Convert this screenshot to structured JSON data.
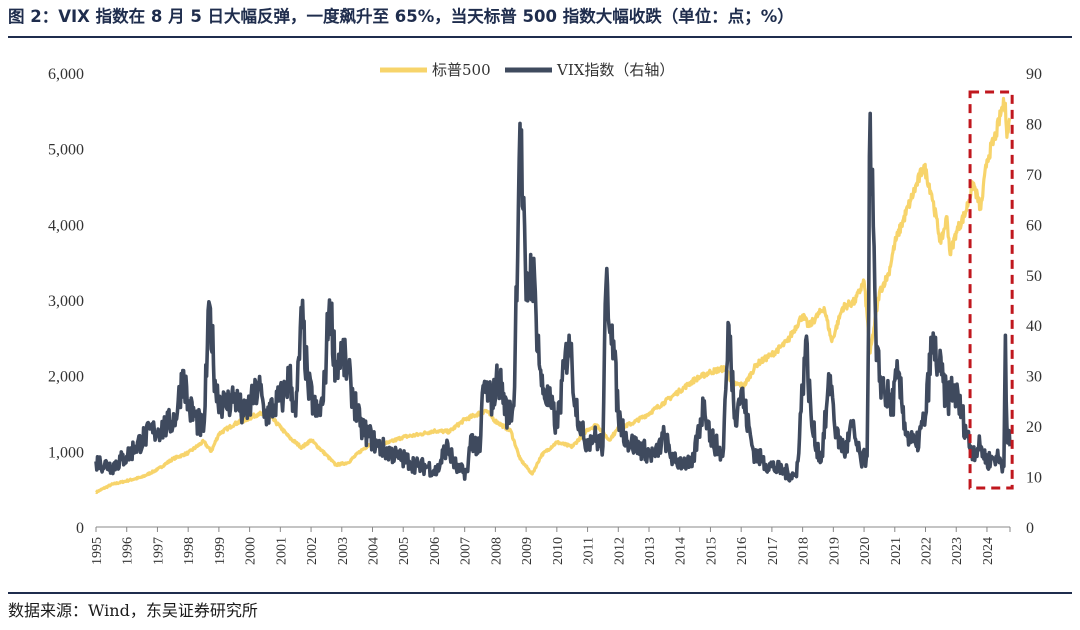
{
  "header": {
    "title": "图 2：VIX 指数在 8 月 5 日大幅反弹，一度飙升至 65%，当天标普 500 指数大幅收跌（单位：点；%）"
  },
  "footer": {
    "source": "数据来源：Wind，东吴证券研究所"
  },
  "colors": {
    "spx": "#f7d46b",
    "vix": "#3f4a5e",
    "highlight": "#c0171e",
    "axis": "#888888"
  },
  "chart_data": {
    "type": "line",
    "title": "",
    "legend_position": "top-center",
    "grid": false,
    "highlight_box": {
      "x_range": [
        "2023-05",
        "2024-08"
      ],
      "style": "dashed",
      "note": "recent period highlighted"
    },
    "y_left": {
      "min": 0,
      "max": 6000,
      "ticks": [
        0,
        1000,
        2000,
        3000,
        4000,
        5000,
        6000
      ],
      "tick_labels": [
        "0",
        "1,000",
        "2,000",
        "3,000",
        "4,000",
        "5,000",
        "6,000"
      ]
    },
    "y_right": {
      "min": 0,
      "max": 90,
      "ticks": [
        0,
        10,
        20,
        30,
        40,
        50,
        60,
        70,
        80,
        90
      ],
      "tick_labels": [
        "0",
        "10",
        "20",
        "30",
        "40",
        "50",
        "60",
        "70",
        "80",
        "90"
      ]
    },
    "x_axis": {
      "start": 1995.0,
      "end": 2024.75,
      "tick_labels": [
        "1995",
        "1996",
        "1997",
        "1998",
        "1999",
        "2000",
        "2001",
        "2002",
        "2003",
        "2004",
        "2005",
        "2006",
        "2007",
        "2008",
        "2009",
        "2010",
        "2011",
        "2012",
        "2013",
        "2014",
        "2015",
        "2016",
        "2017",
        "2018",
        "2019",
        "2020",
        "2021",
        "2022",
        "2023",
        "2024"
      ]
    },
    "series": [
      {
        "name": "标普500",
        "axis": "left",
        "points": [
          [
            1995.0,
            460
          ],
          [
            1995.5,
            560
          ],
          [
            1996.0,
            610
          ],
          [
            1996.5,
            660
          ],
          [
            1997.0,
            760
          ],
          [
            1997.5,
            900
          ],
          [
            1998.0,
            980
          ],
          [
            1998.5,
            1130
          ],
          [
            1998.75,
            1000
          ],
          [
            1999.0,
            1230
          ],
          [
            1999.5,
            1360
          ],
          [
            2000.0,
            1440
          ],
          [
            2000.3,
            1500
          ],
          [
            2000.7,
            1450
          ],
          [
            2001.0,
            1320
          ],
          [
            2001.3,
            1180
          ],
          [
            2001.7,
            1050
          ],
          [
            2002.0,
            1150
          ],
          [
            2002.5,
            950
          ],
          [
            2002.8,
            820
          ],
          [
            2003.2,
            850
          ],
          [
            2003.6,
            1000
          ],
          [
            2004.0,
            1120
          ],
          [
            2004.5,
            1110
          ],
          [
            2005.0,
            1190
          ],
          [
            2005.5,
            1220
          ],
          [
            2006.0,
            1270
          ],
          [
            2006.5,
            1260
          ],
          [
            2007.0,
            1420
          ],
          [
            2007.7,
            1540
          ],
          [
            2008.0,
            1400
          ],
          [
            2008.5,
            1270
          ],
          [
            2008.8,
            900
          ],
          [
            2009.2,
            700
          ],
          [
            2009.5,
            950
          ],
          [
            2010.0,
            1120
          ],
          [
            2010.5,
            1060
          ],
          [
            2011.0,
            1290
          ],
          [
            2011.3,
            1350
          ],
          [
            2011.7,
            1150
          ],
          [
            2012.0,
            1300
          ],
          [
            2012.5,
            1380
          ],
          [
            2013.0,
            1500
          ],
          [
            2013.5,
            1650
          ],
          [
            2014.0,
            1800
          ],
          [
            2014.5,
            1950
          ],
          [
            2015.0,
            2050
          ],
          [
            2015.5,
            2100
          ],
          [
            2015.7,
            1900
          ],
          [
            2016.1,
            1870
          ],
          [
            2016.5,
            2150
          ],
          [
            2017.0,
            2280
          ],
          [
            2017.5,
            2450
          ],
          [
            2018.0,
            2800
          ],
          [
            2018.2,
            2650
          ],
          [
            2018.7,
            2900
          ],
          [
            2018.95,
            2450
          ],
          [
            2019.3,
            2900
          ],
          [
            2019.7,
            2980
          ],
          [
            2020.0,
            3250
          ],
          [
            2020.2,
            2300
          ],
          [
            2020.5,
            3100
          ],
          [
            2020.8,
            3350
          ],
          [
            2021.0,
            3750
          ],
          [
            2021.5,
            4300
          ],
          [
            2021.95,
            4780
          ],
          [
            2022.2,
            4400
          ],
          [
            2022.5,
            3750
          ],
          [
            2022.7,
            4100
          ],
          [
            2022.8,
            3600
          ],
          [
            2023.0,
            3900
          ],
          [
            2023.3,
            4150
          ],
          [
            2023.55,
            4550
          ],
          [
            2023.8,
            4200
          ],
          [
            2024.0,
            4850
          ],
          [
            2024.3,
            5200
          ],
          [
            2024.5,
            5550
          ],
          [
            2024.6,
            5600
          ],
          [
            2024.65,
            5150
          ],
          [
            2024.75,
            5400
          ]
        ]
      },
      {
        "name": "VIX指数（右轴）",
        "axis": "right",
        "points": [
          [
            1995.0,
            13
          ],
          [
            1995.5,
            12
          ],
          [
            1996.0,
            14
          ],
          [
            1996.3,
            16
          ],
          [
            1996.6,
            18
          ],
          [
            1996.9,
            19
          ],
          [
            1997.3,
            20
          ],
          [
            1997.6,
            22
          ],
          [
            1997.85,
            31
          ],
          [
            1998.0,
            24
          ],
          [
            1998.5,
            19
          ],
          [
            1998.7,
            44
          ],
          [
            1998.9,
            27
          ],
          [
            1999.2,
            24
          ],
          [
            1999.5,
            26
          ],
          [
            1999.8,
            22
          ],
          [
            2000.1,
            25
          ],
          [
            2000.3,
            28
          ],
          [
            2000.5,
            22
          ],
          [
            2000.8,
            24
          ],
          [
            2001.1,
            26
          ],
          [
            2001.3,
            30
          ],
          [
            2001.5,
            22
          ],
          [
            2001.7,
            42
          ],
          [
            2001.9,
            28
          ],
          [
            2002.2,
            22
          ],
          [
            2002.4,
            25
          ],
          [
            2002.6,
            45
          ],
          [
            2002.8,
            32
          ],
          [
            2003.0,
            35
          ],
          [
            2003.3,
            28
          ],
          [
            2003.6,
            20
          ],
          [
            2003.9,
            18
          ],
          [
            2004.2,
            16
          ],
          [
            2004.5,
            15
          ],
          [
            2004.8,
            14
          ],
          [
            2005.2,
            13
          ],
          [
            2005.5,
            12
          ],
          [
            2005.8,
            12
          ],
          [
            2006.1,
            11
          ],
          [
            2006.4,
            16
          ],
          [
            2006.8,
            11
          ],
          [
            2007.1,
            11
          ],
          [
            2007.2,
            18
          ],
          [
            2007.5,
            15
          ],
          [
            2007.6,
            28
          ],
          [
            2007.9,
            25
          ],
          [
            2008.1,
            30
          ],
          [
            2008.4,
            22
          ],
          [
            2008.6,
            24
          ],
          [
            2008.8,
            80
          ],
          [
            2009.0,
            45
          ],
          [
            2009.2,
            52
          ],
          [
            2009.5,
            28
          ],
          [
            2009.8,
            24
          ],
          [
            2010.0,
            20
          ],
          [
            2010.4,
            38
          ],
          [
            2010.6,
            25
          ],
          [
            2010.9,
            17
          ],
          [
            2011.2,
            18
          ],
          [
            2011.5,
            16
          ],
          [
            2011.6,
            48
          ],
          [
            2011.8,
            40
          ],
          [
            2012.0,
            22
          ],
          [
            2012.3,
            17
          ],
          [
            2012.6,
            16
          ],
          [
            2012.9,
            15
          ],
          [
            2013.2,
            14
          ],
          [
            2013.5,
            18
          ],
          [
            2013.8,
            13
          ],
          [
            2014.1,
            13
          ],
          [
            2014.4,
            12
          ],
          [
            2014.8,
            25
          ],
          [
            2015.0,
            18
          ],
          [
            2015.4,
            14
          ],
          [
            2015.6,
            40
          ],
          [
            2015.8,
            22
          ],
          [
            2016.0,
            27
          ],
          [
            2016.4,
            15
          ],
          [
            2016.7,
            13
          ],
          [
            2017.0,
            12
          ],
          [
            2017.4,
            11
          ],
          [
            2017.8,
            10
          ],
          [
            2018.1,
            37
          ],
          [
            2018.3,
            20
          ],
          [
            2018.6,
            13
          ],
          [
            2018.9,
            30
          ],
          [
            2019.1,
            18
          ],
          [
            2019.4,
            15
          ],
          [
            2019.6,
            20
          ],
          [
            2019.9,
            13
          ],
          [
            2020.1,
            14
          ],
          [
            2020.2,
            82
          ],
          [
            2020.4,
            33
          ],
          [
            2020.6,
            28
          ],
          [
            2020.9,
            24
          ],
          [
            2021.1,
            30
          ],
          [
            2021.4,
            18
          ],
          [
            2021.7,
            16
          ],
          [
            2022.0,
            22
          ],
          [
            2022.2,
            36
          ],
          [
            2022.4,
            33
          ],
          [
            2022.7,
            25
          ],
          [
            2022.9,
            28
          ],
          [
            2023.2,
            22
          ],
          [
            2023.5,
            15
          ],
          [
            2023.8,
            16
          ],
          [
            2024.0,
            13
          ],
          [
            2024.3,
            14
          ],
          [
            2024.55,
            12
          ],
          [
            2024.6,
            38
          ],
          [
            2024.65,
            20
          ],
          [
            2024.75,
            16
          ]
        ]
      }
    ]
  }
}
